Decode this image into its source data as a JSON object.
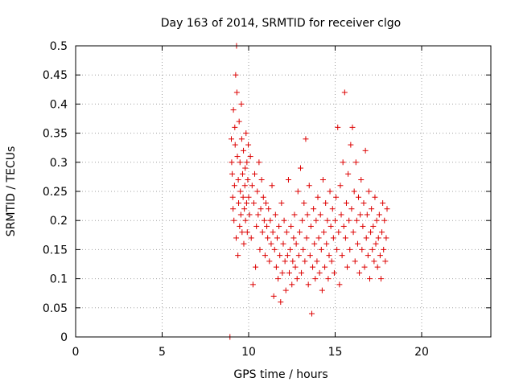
{
  "chart_data": {
    "type": "scatter",
    "title": "Day 163 of 2014, SRMTID for receiver clgo",
    "xlabel": "GPS time / hours",
    "ylabel": "SRMTID / TECUs",
    "xlim": [
      0,
      24
    ],
    "ylim": [
      0,
      0.5
    ],
    "x_ticks": [
      0,
      5,
      10,
      15,
      20
    ],
    "x_tick_labels": [
      "0",
      "5",
      "10",
      "15",
      "20"
    ],
    "y_ticks": [
      0,
      0.05,
      0.1,
      0.15,
      0.2,
      0.25,
      0.3,
      0.35,
      0.4,
      0.45,
      0.5
    ],
    "y_tick_labels": [
      "0",
      "0.05",
      "0.1",
      "0.15",
      "0.2",
      "0.25",
      "0.3",
      "0.35",
      "0.4",
      "0.45",
      "0.5"
    ],
    "grid": true,
    "marker": "+",
    "marker_color": "#dd0000",
    "series": [
      {
        "name": "SRMTID",
        "points": [
          [
            8.92,
            0.0
          ],
          [
            9.0,
            0.34
          ],
          [
            9.02,
            0.3
          ],
          [
            9.05,
            0.28
          ],
          [
            9.08,
            0.24
          ],
          [
            9.1,
            0.22
          ],
          [
            9.12,
            0.39
          ],
          [
            9.15,
            0.2
          ],
          [
            9.18,
            0.26
          ],
          [
            9.2,
            0.36
          ],
          [
            9.22,
            0.33
          ],
          [
            9.25,
            0.45
          ],
          [
            9.28,
            0.17
          ],
          [
            9.3,
            0.5
          ],
          [
            9.32,
            0.42
          ],
          [
            9.35,
            0.31
          ],
          [
            9.38,
            0.14
          ],
          [
            9.4,
            0.27
          ],
          [
            9.42,
            0.23
          ],
          [
            9.45,
            0.37
          ],
          [
            9.48,
            0.19
          ],
          [
            9.5,
            0.3
          ],
          [
            9.52,
            0.25
          ],
          [
            9.55,
            0.21
          ],
          [
            9.58,
            0.4
          ],
          [
            9.6,
            0.34
          ],
          [
            9.62,
            0.18
          ],
          [
            9.65,
            0.28
          ],
          [
            9.68,
            0.24
          ],
          [
            9.7,
            0.32
          ],
          [
            9.72,
            0.16
          ],
          [
            9.75,
            0.22
          ],
          [
            9.78,
            0.26
          ],
          [
            9.8,
            0.29
          ],
          [
            9.82,
            0.2
          ],
          [
            9.85,
            0.35
          ],
          [
            9.88,
            0.23
          ],
          [
            9.9,
            0.3
          ],
          [
            9.92,
            0.18
          ],
          [
            9.95,
            0.27
          ],
          [
            9.98,
            0.33
          ],
          [
            10.0,
            0.24
          ],
          [
            10.05,
            0.21
          ],
          [
            10.1,
            0.31
          ],
          [
            10.15,
            0.17
          ],
          [
            10.2,
            0.26
          ],
          [
            10.25,
            0.09
          ],
          [
            10.3,
            0.23
          ],
          [
            10.35,
            0.28
          ],
          [
            10.4,
            0.12
          ],
          [
            10.45,
            0.19
          ],
          [
            10.5,
            0.25
          ],
          [
            10.55,
            0.21
          ],
          [
            10.6,
            0.3
          ],
          [
            10.65,
            0.15
          ],
          [
            10.7,
            0.22
          ],
          [
            10.75,
            0.27
          ],
          [
            10.8,
            0.18
          ],
          [
            10.85,
            0.24
          ],
          [
            10.9,
            0.2
          ],
          [
            10.95,
            0.14
          ],
          [
            11.0,
            0.23
          ],
          [
            11.05,
            0.19
          ],
          [
            11.1,
            0.17
          ],
          [
            11.15,
            0.22
          ],
          [
            11.2,
            0.13
          ],
          [
            11.25,
            0.2
          ],
          [
            11.3,
            0.16
          ],
          [
            11.35,
            0.26
          ],
          [
            11.4,
            0.18
          ],
          [
            11.45,
            0.07
          ],
          [
            11.5,
            0.15
          ],
          [
            11.55,
            0.21
          ],
          [
            11.6,
            0.12
          ],
          [
            11.65,
            0.17
          ],
          [
            11.7,
            0.1
          ],
          [
            11.75,
            0.19
          ],
          [
            11.8,
            0.14
          ],
          [
            11.85,
            0.06
          ],
          [
            11.9,
            0.23
          ],
          [
            11.95,
            0.11
          ],
          [
            12.0,
            0.16
          ],
          [
            12.05,
            0.2
          ],
          [
            12.1,
            0.13
          ],
          [
            12.15,
            0.08
          ],
          [
            12.2,
            0.18
          ],
          [
            12.25,
            0.14
          ],
          [
            12.3,
            0.27
          ],
          [
            12.35,
            0.11
          ],
          [
            12.4,
            0.15
          ],
          [
            12.45,
            0.19
          ],
          [
            12.5,
            0.09
          ],
          [
            12.55,
            0.13
          ],
          [
            12.6,
            0.17
          ],
          [
            12.65,
            0.21
          ],
          [
            12.7,
            0.12
          ],
          [
            12.75,
            0.16
          ],
          [
            12.8,
            0.1
          ],
          [
            12.85,
            0.25
          ],
          [
            12.9,
            0.14
          ],
          [
            12.95,
            0.18
          ],
          [
            13.0,
            0.29
          ],
          [
            13.05,
            0.11
          ],
          [
            13.1,
            0.2
          ],
          [
            13.15,
            0.15
          ],
          [
            13.2,
            0.23
          ],
          [
            13.25,
            0.13
          ],
          [
            13.3,
            0.34
          ],
          [
            13.35,
            0.17
          ],
          [
            13.4,
            0.21
          ],
          [
            13.45,
            0.09
          ],
          [
            13.5,
            0.26
          ],
          [
            13.55,
            0.14
          ],
          [
            13.6,
            0.19
          ],
          [
            13.65,
            0.04
          ],
          [
            13.7,
            0.12
          ],
          [
            13.75,
            0.22
          ],
          [
            13.8,
            0.16
          ],
          [
            13.85,
            0.1
          ],
          [
            13.9,
            0.2
          ],
          [
            13.95,
            0.13
          ],
          [
            14.0,
            0.24
          ],
          [
            14.05,
            0.17
          ],
          [
            14.1,
            0.11
          ],
          [
            14.15,
            0.21
          ],
          [
            14.2,
            0.15
          ],
          [
            14.25,
            0.08
          ],
          [
            14.3,
            0.27
          ],
          [
            14.35,
            0.18
          ],
          [
            14.4,
            0.12
          ],
          [
            14.45,
            0.23
          ],
          [
            14.5,
            0.16
          ],
          [
            14.55,
            0.2
          ],
          [
            14.6,
            0.1
          ],
          [
            14.65,
            0.14
          ],
          [
            14.7,
            0.25
          ],
          [
            14.75,
            0.19
          ],
          [
            14.8,
            0.13
          ],
          [
            14.85,
            0.22
          ],
          [
            14.9,
            0.17
          ],
          [
            14.95,
            0.11
          ],
          [
            15.0,
            0.2
          ],
          [
            15.05,
            0.24
          ],
          [
            15.1,
            0.15
          ],
          [
            15.15,
            0.36
          ],
          [
            15.2,
            0.18
          ],
          [
            15.25,
            0.09
          ],
          [
            15.3,
            0.26
          ],
          [
            15.35,
            0.21
          ],
          [
            15.4,
            0.14
          ],
          [
            15.45,
            0.3
          ],
          [
            15.5,
            0.19
          ],
          [
            15.55,
            0.42
          ],
          [
            15.6,
            0.17
          ],
          [
            15.65,
            0.23
          ],
          [
            15.7,
            0.12
          ],
          [
            15.75,
            0.28
          ],
          [
            15.8,
            0.2
          ],
          [
            15.85,
            0.15
          ],
          [
            15.9,
            0.33
          ],
          [
            15.95,
            0.22
          ],
          [
            16.0,
            0.36
          ],
          [
            16.05,
            0.18
          ],
          [
            16.1,
            0.25
          ],
          [
            16.15,
            0.13
          ],
          [
            16.2,
            0.3
          ],
          [
            16.25,
            0.2
          ],
          [
            16.3,
            0.16
          ],
          [
            16.35,
            0.24
          ],
          [
            16.4,
            0.11
          ],
          [
            16.45,
            0.21
          ],
          [
            16.5,
            0.27
          ],
          [
            16.55,
            0.15
          ],
          [
            16.6,
            0.19
          ],
          [
            16.65,
            0.23
          ],
          [
            16.7,
            0.12
          ],
          [
            16.75,
            0.32
          ],
          [
            16.8,
            0.17
          ],
          [
            16.85,
            0.21
          ],
          [
            16.9,
            0.14
          ],
          [
            16.95,
            0.25
          ],
          [
            17.0,
            0.1
          ],
          [
            17.05,
            0.18
          ],
          [
            17.1,
            0.22
          ],
          [
            17.15,
            0.15
          ],
          [
            17.2,
            0.19
          ],
          [
            17.25,
            0.13
          ],
          [
            17.3,
            0.24
          ],
          [
            17.35,
            0.16
          ],
          [
            17.4,
            0.2
          ],
          [
            17.45,
            0.12
          ],
          [
            17.5,
            0.17
          ],
          [
            17.55,
            0.21
          ],
          [
            17.6,
            0.14
          ],
          [
            17.65,
            0.1
          ],
          [
            17.7,
            0.18
          ],
          [
            17.75,
            0.23
          ],
          [
            17.8,
            0.15
          ],
          [
            17.85,
            0.2
          ],
          [
            17.9,
            0.13
          ],
          [
            17.95,
            0.17
          ],
          [
            18.0,
            0.22
          ]
        ]
      }
    ]
  }
}
